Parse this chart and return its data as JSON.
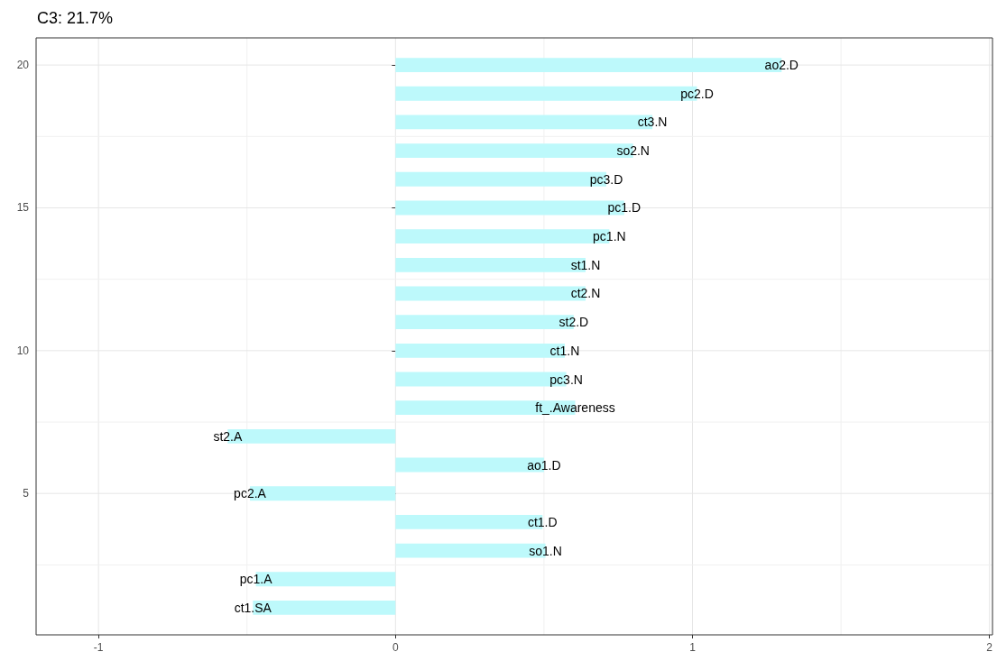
{
  "chart_data": {
    "type": "bar",
    "orientation": "horizontal",
    "title": "C3: 21.7%",
    "x": [
      20,
      19,
      18,
      17,
      16,
      15,
      14,
      13,
      12,
      11,
      10,
      9,
      8,
      7,
      6,
      5,
      4,
      3,
      2,
      1
    ],
    "series": [
      {
        "color": "#bdf9fb",
        "values": [
          1.3,
          1.015,
          0.865,
          0.8,
          0.71,
          0.77,
          0.72,
          0.64,
          0.64,
          0.6,
          0.57,
          0.575,
          0.605,
          -0.565,
          0.5,
          -0.49,
          0.495,
          0.505,
          -0.47,
          -0.48
        ]
      }
    ],
    "xlim": [
      -1.21,
      2.01
    ],
    "xticks": [
      -1,
      0,
      1,
      2
    ],
    "ylim": [
      0.05,
      20.95
    ],
    "yticks": [
      5,
      10,
      15,
      20
    ],
    "grid": true,
    "annotations": [
      {
        "text": "ao2.D",
        "x": 1.3,
        "y": 20
      },
      {
        "text": "pc2.D",
        "x": 1.015,
        "y": 19
      },
      {
        "text": "ct3.N",
        "x": 0.865,
        "y": 18
      },
      {
        "text": "so2.N",
        "x": 0.8,
        "y": 17
      },
      {
        "text": "pc3.D",
        "x": 0.71,
        "y": 16
      },
      {
        "text": "pc1.D",
        "x": 0.77,
        "y": 15
      },
      {
        "text": "pc1.N",
        "x": 0.72,
        "y": 14
      },
      {
        "text": "st1.N",
        "x": 0.64,
        "y": 13
      },
      {
        "text": "ct2.N",
        "x": 0.64,
        "y": 12
      },
      {
        "text": "st2.D",
        "x": 0.6,
        "y": 11
      },
      {
        "text": "ct1.N",
        "x": 0.57,
        "y": 10
      },
      {
        "text": "pc3.N",
        "x": 0.575,
        "y": 9
      },
      {
        "text": "ft_.Awareness",
        "x": 0.605,
        "y": 8
      },
      {
        "text": "st2.A",
        "x": -0.565,
        "y": 7
      },
      {
        "text": "ao1.D",
        "x": 0.5,
        "y": 6
      },
      {
        "text": "pc2.A",
        "x": -0.49,
        "y": 5
      },
      {
        "text": "ct1.D",
        "x": 0.495,
        "y": 4
      },
      {
        "text": "so1.N",
        "x": 0.505,
        "y": 3
      },
      {
        "text": "pc1.A",
        "x": -0.47,
        "y": 2
      },
      {
        "text": "ct1.SA",
        "x": -0.48,
        "y": 1
      }
    ]
  }
}
